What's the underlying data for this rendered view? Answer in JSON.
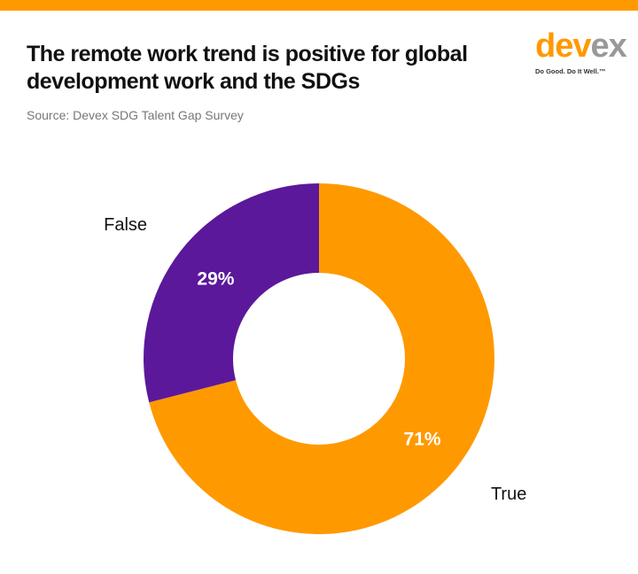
{
  "title": "The remote work trend is positive for global development work and the SDGs",
  "source": "Source: Devex SDG Talent Gap Survey",
  "logo": {
    "text_a": "dev",
    "text_b": "ex",
    "tagline": "Do Good. Do It Well.™"
  },
  "colors": {
    "accent": "#ff9900",
    "purple": "#5b189b"
  },
  "chart_data": {
    "type": "pie",
    "donut": true,
    "categories": [
      "True",
      "False"
    ],
    "values": [
      71,
      29
    ],
    "data_labels": [
      "71%",
      "29%"
    ],
    "colors": [
      "#ff9900",
      "#5b189b"
    ]
  }
}
